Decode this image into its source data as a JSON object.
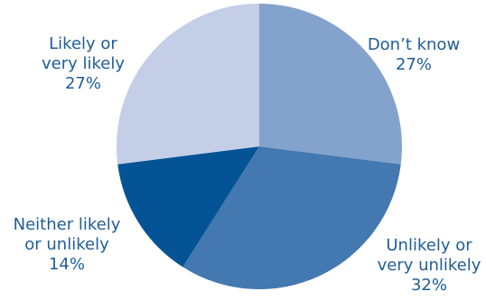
{
  "chart_data": {
    "type": "pie",
    "start_angle_deg": 0,
    "direction": "clockwise",
    "slices": [
      {
        "label_lines": [
          "Don’t know"
        ],
        "value": 27,
        "value_label": "27%",
        "color": "#84a3cc"
      },
      {
        "label_lines": [
          "Unlikely or",
          "very unlikely"
        ],
        "value": 32,
        "value_label": "32%",
        "color": "#4378b0"
      },
      {
        "label_lines": [
          "Neither likely",
          "or unlikely"
        ],
        "value": 14,
        "value_label": "14%",
        "color": "#045495"
      },
      {
        "label_lines": [
          "Likely or",
          "very likely"
        ],
        "value": 27,
        "value_label": "27%",
        "color": "#c4cfe7"
      }
    ],
    "label_color": "#1f5d99"
  }
}
